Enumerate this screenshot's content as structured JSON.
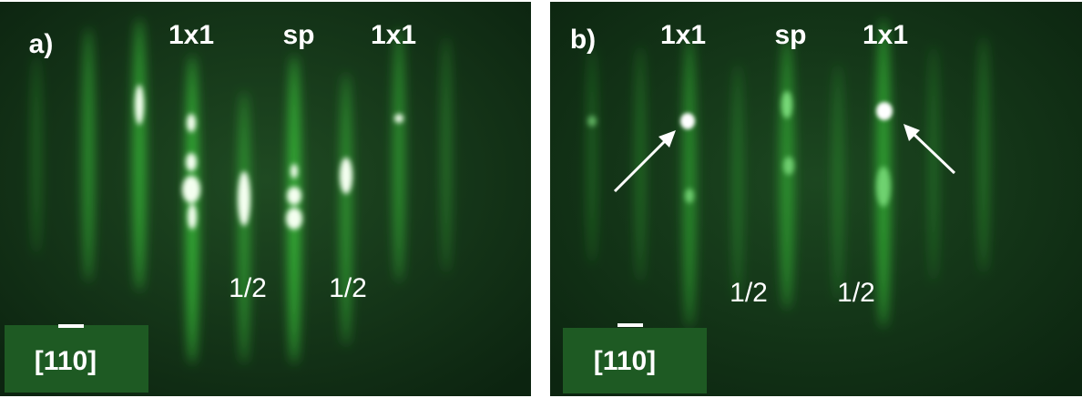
{
  "panels": [
    {
      "label": "a)",
      "top_labels": [
        "1x1",
        "sp",
        "1x1"
      ],
      "bottom_labels": [
        "1/2",
        "1/2"
      ],
      "direction": "[110]"
    },
    {
      "label": "b)",
      "top_labels": [
        "1x1",
        "sp",
        "1x1"
      ],
      "bottom_labels": [
        "1/2",
        "1/2"
      ],
      "direction": "[110]"
    }
  ]
}
